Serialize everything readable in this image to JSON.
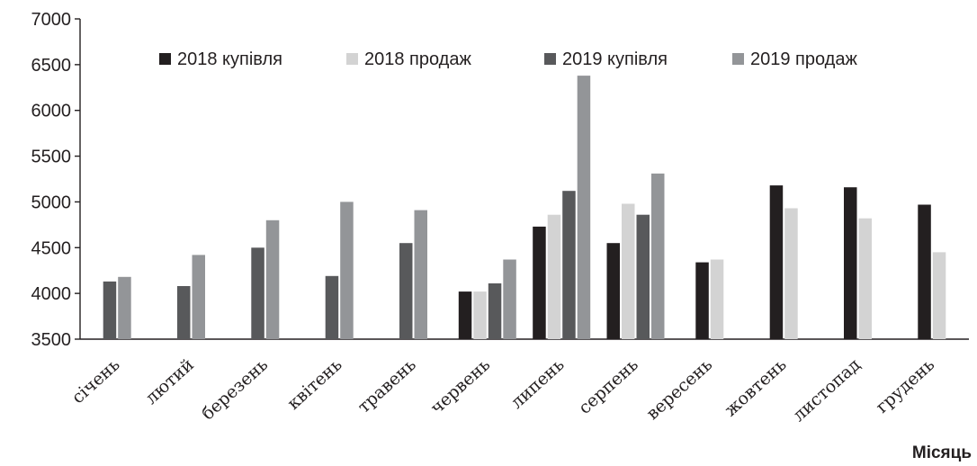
{
  "chart_data": {
    "type": "bar",
    "title": "",
    "xlabel": "Місяць",
    "ylabel": "",
    "ylim": [
      3500,
      7000
    ],
    "yticks": [
      3500,
      4000,
      4500,
      5000,
      5500,
      6000,
      6500,
      7000
    ],
    "grid": false,
    "legend_position": "top",
    "categories": [
      "січень",
      "лютий",
      "березень",
      "квітень",
      "травень",
      "червень",
      "липень",
      "серпень",
      "вересень",
      "жовтень",
      "листопад",
      "грудень"
    ],
    "series": [
      {
        "name": "2018 купівля",
        "color": "#231f20",
        "values": [
          null,
          null,
          null,
          null,
          null,
          4020,
          4730,
          4550,
          4340,
          5180,
          5160,
          4970
        ]
      },
      {
        "name": "2018 продаж",
        "color": "#d3d3d3",
        "values": [
          null,
          null,
          null,
          null,
          null,
          4020,
          4860,
          4980,
          4370,
          4930,
          4820,
          4450
        ]
      },
      {
        "name": "2019 купівля",
        "color": "#58595b",
        "values": [
          4130,
          4080,
          4500,
          4190,
          4550,
          4110,
          5120,
          4860,
          null,
          null,
          null,
          null
        ]
      },
      {
        "name": "2019 продаж",
        "color": "#939598",
        "values": [
          4180,
          4420,
          4800,
          5000,
          4910,
          4370,
          6380,
          5310,
          null,
          null,
          null,
          null
        ]
      }
    ]
  }
}
